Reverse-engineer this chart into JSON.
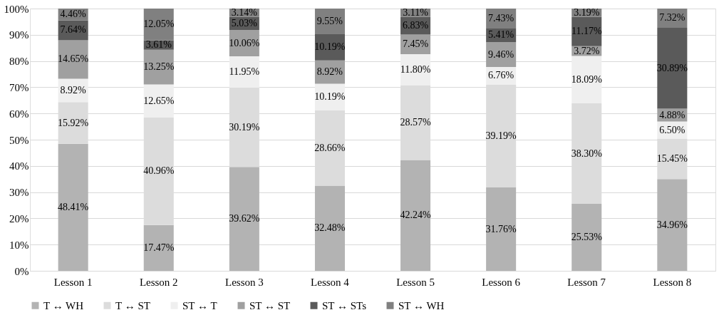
{
  "chart_data": {
    "type": "bar",
    "stacked": true,
    "categories": [
      "Lesson 1",
      "Lesson 2",
      "Lesson 3",
      "Lesson 4",
      "Lesson 5",
      "Lesson 6",
      "Lesson 7",
      "Lesson 8"
    ],
    "series": [
      {
        "name": "T ↔ WH",
        "color": "#b3b3b3",
        "values": [
          48.41,
          17.47,
          39.62,
          32.48,
          42.24,
          31.76,
          25.53,
          34.96
        ],
        "value_labels": [
          "48.41%",
          "17.47%",
          "39.62%",
          "32.48%",
          "42.24%",
          "31.76%",
          "25.53%",
          "34.96%"
        ]
      },
      {
        "name": "T ↔ ST",
        "color": "#dcdcdc",
        "values": [
          15.92,
          40.96,
          30.19,
          28.66,
          28.57,
          39.19,
          38.3,
          15.45
        ],
        "value_labels": [
          "15.92%",
          "40.96%",
          "30.19%",
          "28.66%",
          "28.57%",
          "39.19%",
          "38.30%",
          "15.45%"
        ]
      },
      {
        "name": "ST ↔ T",
        "color": "#efefef",
        "values": [
          8.92,
          12.65,
          11.95,
          10.19,
          11.8,
          6.76,
          18.09,
          6.5
        ],
        "value_labels": [
          "8.92%",
          "12.65%",
          "11.95%",
          "10.19%",
          "11.80%",
          "6.76%",
          "18.09%",
          "6.50%"
        ]
      },
      {
        "name": "ST ↔ ST",
        "color": "#a0a0a0",
        "values": [
          14.65,
          13.25,
          10.06,
          8.92,
          7.45,
          9.46,
          3.72,
          4.88
        ],
        "value_labels": [
          "14.65%",
          "13.25%",
          "10.06%",
          "8.92%",
          "7.45%",
          "9.46%",
          "3.72%",
          "4.88%"
        ]
      },
      {
        "name": "ST ↔ STs",
        "color": "#5a5a5a",
        "values": [
          7.64,
          3.61,
          5.03,
          10.19,
          6.83,
          5.41,
          11.17,
          30.89
        ],
        "value_labels": [
          "7.64%",
          "3.61%",
          "5.03%",
          "10.19%",
          "6.83%",
          "5.41%",
          "11.17%",
          "30.89%"
        ]
      },
      {
        "name": "ST ↔ WH",
        "color": "#808080",
        "values": [
          4.46,
          12.05,
          3.14,
          9.55,
          3.11,
          7.43,
          3.19,
          7.32
        ],
        "value_labels": [
          "4.46%",
          "12.05%",
          "3.14%",
          "9.55%",
          "3.11%",
          "7.43%",
          "3.19%",
          "7.32%"
        ]
      }
    ],
    "ylim": [
      0,
      100
    ],
    "yticks": [
      {
        "value": 0,
        "label": "0%"
      },
      {
        "value": 10,
        "label": "10%"
      },
      {
        "value": 20,
        "label": "20%"
      },
      {
        "value": 30,
        "label": "30%"
      },
      {
        "value": 40,
        "label": "40%"
      },
      {
        "value": 50,
        "label": "50%"
      },
      {
        "value": 60,
        "label": "60%"
      },
      {
        "value": 70,
        "label": "70%"
      },
      {
        "value": 80,
        "label": "80%"
      },
      {
        "value": 90,
        "label": "90%"
      },
      {
        "value": 100,
        "label": "100%"
      }
    ],
    "grid": "y",
    "legend": "bottom"
  }
}
